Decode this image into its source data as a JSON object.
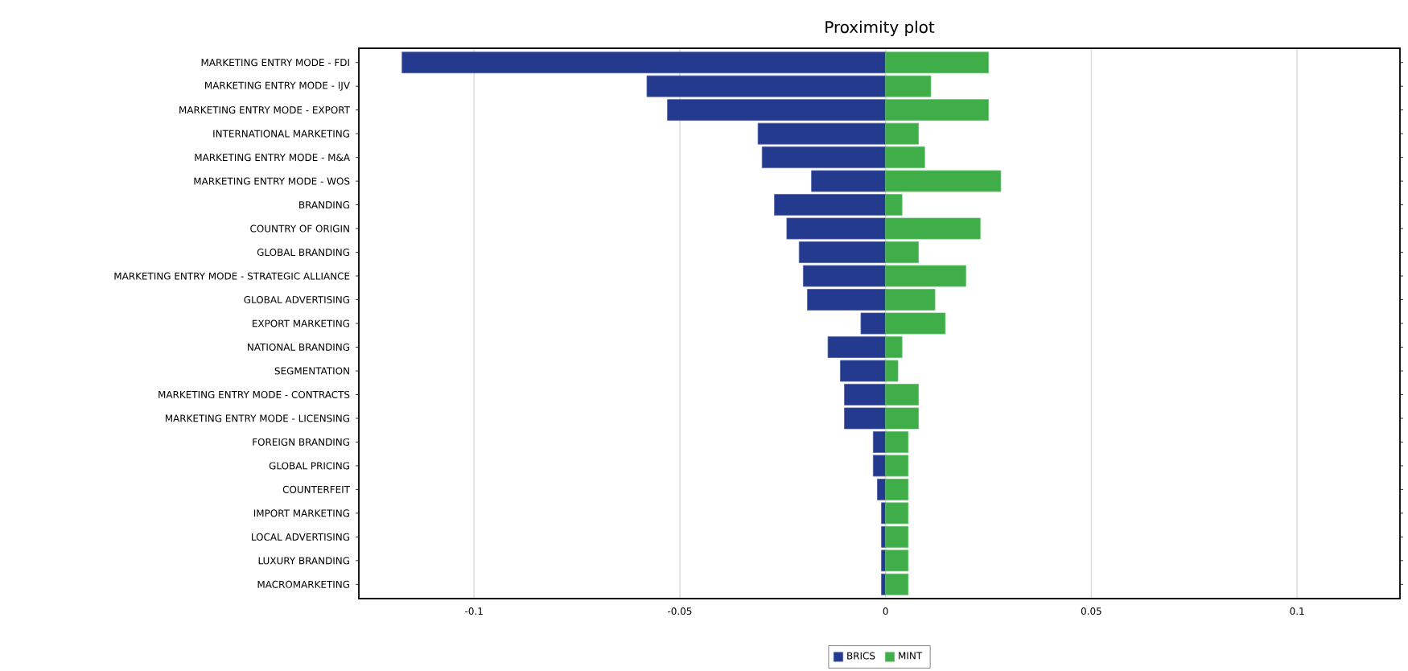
{
  "chart_data": {
    "type": "bar",
    "orientation": "horizontal",
    "title": "Proximity plot",
    "categories": [
      "MARKETING ENTRY MODE - FDI",
      "MARKETING ENTRY MODE - IJV",
      "MARKETING ENTRY MODE - EXPORT",
      "INTERNATIONAL MARKETING",
      "MARKETING ENTRY MODE - M&A",
      "MARKETING ENTRY MODE - WOS",
      "BRANDING",
      "COUNTRY OF ORIGIN",
      "GLOBAL BRANDING",
      "MARKETING ENTRY MODE - STRATEGIC ALLIANCE",
      "GLOBAL ADVERTISING",
      "EXPORT MARKETING",
      "NATIONAL BRANDING",
      "SEGMENTATION",
      "MARKETING ENTRY MODE - CONTRACTS",
      "MARKETING ENTRY MODE - LICENSING",
      "FOREIGN BRANDING",
      "GLOBAL PRICING",
      "COUNTERFEIT",
      "IMPORT MARKETING",
      "LOCAL  ADVERTISING",
      "LUXURY BRANDING",
      "MACROMARKETING"
    ],
    "series": [
      {
        "name": "BRICS",
        "color": "#243a8f",
        "values": [
          -0.1175,
          -0.058,
          -0.053,
          -0.031,
          -0.03,
          -0.018,
          -0.027,
          -0.024,
          -0.021,
          -0.02,
          -0.019,
          -0.006,
          -0.014,
          -0.011,
          -0.01,
          -0.01,
          -0.003,
          -0.003,
          -0.002,
          -0.001,
          -0.001,
          -0.001,
          -0.001
        ]
      },
      {
        "name": "MINT",
        "color": "#3fae49",
        "values": [
          0.025,
          0.011,
          0.025,
          0.008,
          0.0095,
          0.028,
          0.004,
          0.023,
          0.008,
          0.0195,
          0.012,
          0.0145,
          0.004,
          0.003,
          0.008,
          0.008,
          0.0055,
          0.0055,
          0.0055,
          0.0055,
          0.0055,
          0.0055,
          0.0055
        ]
      }
    ],
    "xlim": [
      -0.128,
      0.125
    ],
    "xticks": [
      -0.1,
      -0.05,
      0,
      0.05,
      0.1
    ],
    "stacked": true,
    "grid": "x",
    "legend": "bottom"
  }
}
